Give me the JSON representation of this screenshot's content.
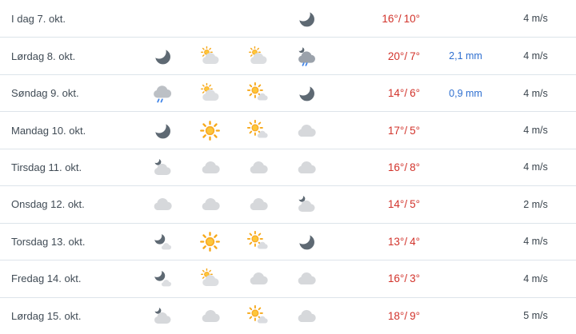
{
  "forecast": {
    "temp_separator": "/",
    "rows": [
      {
        "day": "I dag 7. okt.",
        "icons": [
          "",
          "",
          "",
          "clear-night"
        ],
        "temp_high": "16°",
        "temp_low": "10°",
        "precip": "",
        "wind": "4 m/s"
      },
      {
        "day": "Lørdag 8. okt.",
        "icons": [
          "clear-night",
          "sun-behind-cloud",
          "sun-behind-cloud",
          "rain-showers-night"
        ],
        "temp_high": "20°",
        "temp_low": "7°",
        "precip": "2,1 mm",
        "wind": "4 m/s"
      },
      {
        "day": "Søndag 9. okt.",
        "icons": [
          "rain",
          "sun-behind-cloud",
          "fair-day",
          "clear-night"
        ],
        "temp_high": "14°",
        "temp_low": "6°",
        "precip": "0,9 mm",
        "wind": "4 m/s"
      },
      {
        "day": "Mandag 10. okt.",
        "icons": [
          "clear-night",
          "sunny",
          "fair-day",
          "cloudy"
        ],
        "temp_high": "17°",
        "temp_low": "5°",
        "precip": "",
        "wind": "4 m/s"
      },
      {
        "day": "Tirsdag 11. okt.",
        "icons": [
          "partly-cloudy-night",
          "cloudy",
          "cloudy",
          "cloudy"
        ],
        "temp_high": "16°",
        "temp_low": "8°",
        "precip": "",
        "wind": "4 m/s"
      },
      {
        "day": "Onsdag 12. okt.",
        "icons": [
          "cloudy",
          "cloudy",
          "cloudy",
          "partly-cloudy-night"
        ],
        "temp_high": "14°",
        "temp_low": "5°",
        "precip": "",
        "wind": "2 m/s"
      },
      {
        "day": "Torsdag 13. okt.",
        "icons": [
          "fair-night",
          "sunny",
          "fair-day",
          "clear-night"
        ],
        "temp_high": "13°",
        "temp_low": "4°",
        "precip": "",
        "wind": "4 m/s"
      },
      {
        "day": "Fredag 14. okt.",
        "icons": [
          "fair-night",
          "sun-behind-cloud",
          "cloudy",
          "cloudy"
        ],
        "temp_high": "16°",
        "temp_low": "3°",
        "precip": "",
        "wind": "4 m/s"
      },
      {
        "day": "Lørdag 15. okt.",
        "icons": [
          "partly-cloudy-night",
          "cloudy",
          "fair-day",
          "cloudy"
        ],
        "temp_high": "18°",
        "temp_low": "9°",
        "precip": "",
        "wind": "5 m/s"
      }
    ]
  },
  "colors": {
    "temp_red": "#d2342c",
    "precip_blue": "#2e6fd0",
    "wind_text": "#3a444d",
    "divider": "#dde4ea",
    "day_text": "#404b55",
    "moon_gray": "#5e6973",
    "sun_orange": "#f9a825",
    "rain_blue": "#4285e8"
  }
}
